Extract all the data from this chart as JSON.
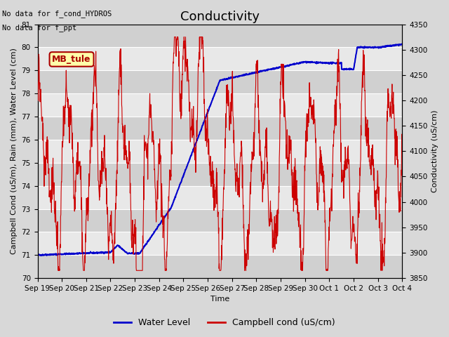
{
  "title": "Conductivity",
  "xlabel": "Time",
  "ylabel_left": "Campbell Cond (uS/m), Rain (mm), Water Level (cm)",
  "ylabel_right": "Conductivity (uS/cm)",
  "annotation_line1": "No data for f_cond_HYDROS",
  "annotation_line2": "No data for f_ppt",
  "legend_box_label": "MB_tule",
  "ylim_left": [
    70.0,
    81.0
  ],
  "ylim_right": [
    3850,
    4350
  ],
  "yticks_left": [
    70.0,
    71.0,
    72.0,
    73.0,
    74.0,
    75.0,
    76.0,
    77.0,
    78.0,
    79.0,
    80.0,
    81.0
  ],
  "yticks_right": [
    3850,
    3900,
    3950,
    4000,
    4050,
    4100,
    4150,
    4200,
    4250,
    4300,
    4350
  ],
  "xtick_labels": [
    "Sep 19",
    "Sep 20",
    "Sep 21",
    "Sep 22",
    "Sep 23",
    "Sep 24",
    "Sep 25",
    "Sep 26",
    "Sep 27",
    "Sep 28",
    "Sep 29",
    "Sep 30",
    "Oct 1",
    "Oct 2",
    "Oct 3",
    "Oct 4"
  ],
  "bg_color": "#d8d8d8",
  "plot_bg_color": "#e8e8e8",
  "stripe_dark": "#d0d0d0",
  "stripe_light": "#e8e8e8",
  "water_level_color": "#0000cc",
  "campbell_color": "#cc0000",
  "legend_label_water": "Water Level",
  "legend_label_campbell": "Campbell cond (uS/cm)",
  "title_fontsize": 13,
  "label_fontsize": 8,
  "tick_fontsize": 7.5,
  "annot_fontsize": 7.5
}
